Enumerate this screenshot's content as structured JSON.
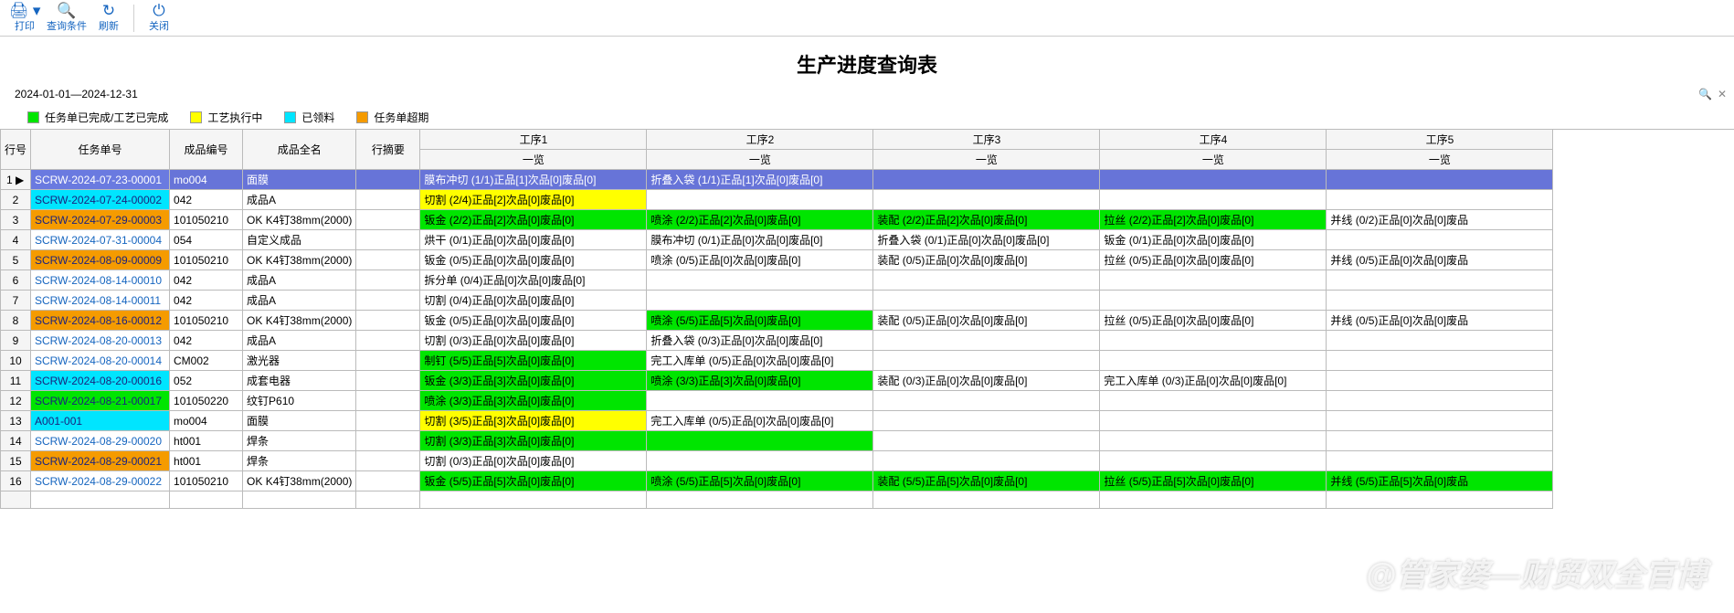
{
  "colors": {
    "green": "#00e500",
    "yellow": "#ffff00",
    "cyan": "#00e5ff",
    "orange": "#f59b00",
    "header_blue": "#6774d8",
    "selected_blue": "#6a7ae0",
    "link": "#1565c0",
    "white": "#ffffff",
    "header_bg": "#f5f5f5"
  },
  "toolbar": [
    {
      "name": "print",
      "icon": "🖨",
      "label": "打印",
      "dropdown": true
    },
    {
      "name": "query",
      "icon": "🔍",
      "label": "查询条件"
    },
    {
      "name": "refresh",
      "icon": "↻",
      "label": "刷新"
    },
    {
      "name": "sep"
    },
    {
      "name": "close",
      "icon": "⏻",
      "label": "关闭"
    }
  ],
  "title": "生产进度查询表",
  "date_range": "2024-01-01—2024-12-31",
  "right_icons": [
    "🔍",
    "✕"
  ],
  "legend": [
    {
      "color": "green",
      "label": "任务单已完成/工艺已完成"
    },
    {
      "color": "yellow",
      "label": "工艺执行中"
    },
    {
      "color": "cyan",
      "label": "已领料"
    },
    {
      "color": "orange",
      "label": "任务单超期"
    }
  ],
  "columns": {
    "row_no": "行号",
    "task_no": "任务单号",
    "product_code": "成品编号",
    "product_name": "成品全名",
    "summary": "行摘要",
    "process_prefix": "工序",
    "process_sub": "一览",
    "process_count": 5
  },
  "col_widths": {
    "row_no": 32,
    "task_no": 152,
    "product_code": 80,
    "product_name": 88,
    "summary": 70,
    "process": 248
  },
  "rows": [
    {
      "no": 1,
      "selected": true,
      "task": {
        "text": "SCRW-2024-07-23-00001",
        "bg": "selected_blue"
      },
      "code": {
        "text": "mo004",
        "bg": "header_blue"
      },
      "name": {
        "text": "面膜",
        "bg": "header_blue"
      },
      "summary": {
        "text": "",
        "bg": "header_blue"
      },
      "procs": [
        {
          "text": "膜布冲切 (1/1)正品[1]次品[0]废品[0]",
          "bg": "header_blue"
        },
        {
          "text": "折叠入袋 (1/1)正品[1]次品[0]废品[0]",
          "bg": "header_blue"
        },
        {
          "text": "",
          "bg": "header_blue"
        },
        {
          "text": "",
          "bg": "header_blue"
        },
        {
          "text": "",
          "bg": "header_blue"
        }
      ]
    },
    {
      "no": 2,
      "task": {
        "text": "SCRW-2024-07-24-00002",
        "bg": "cyan"
      },
      "code": {
        "text": "042"
      },
      "name": {
        "text": "成品A"
      },
      "summary": {
        "text": ""
      },
      "procs": [
        {
          "text": "切割 (2/4)正品[2]次品[0]废品[0]",
          "bg": "yellow"
        },
        {
          "text": ""
        },
        {
          "text": ""
        },
        {
          "text": ""
        },
        {
          "text": ""
        }
      ]
    },
    {
      "no": 3,
      "task": {
        "text": "SCRW-2024-07-29-00003",
        "bg": "orange"
      },
      "code": {
        "text": "101050210"
      },
      "name": {
        "text": "OK K4钉38mm(2000)"
      },
      "summary": {
        "text": ""
      },
      "procs": [
        {
          "text": "钣金 (2/2)正品[2]次品[0]废品[0]",
          "bg": "green"
        },
        {
          "text": "喷涂 (2/2)正品[2]次品[0]废品[0]",
          "bg": "green"
        },
        {
          "text": "装配 (2/2)正品[2]次品[0]废品[0]",
          "bg": "green"
        },
        {
          "text": "拉丝 (2/2)正品[2]次品[0]废品[0]",
          "bg": "green"
        },
        {
          "text": "并线 (0/2)正品[0]次品[0]废品"
        }
      ]
    },
    {
      "no": 4,
      "task": {
        "text": "SCRW-2024-07-31-00004"
      },
      "code": {
        "text": "054"
      },
      "name": {
        "text": "自定义成品"
      },
      "summary": {
        "text": ""
      },
      "procs": [
        {
          "text": "烘干 (0/1)正品[0]次品[0]废品[0]"
        },
        {
          "text": "膜布冲切 (0/1)正品[0]次品[0]废品[0]"
        },
        {
          "text": "折叠入袋 (0/1)正品[0]次品[0]废品[0]"
        },
        {
          "text": "钣金 (0/1)正品[0]次品[0]废品[0]"
        },
        {
          "text": ""
        }
      ]
    },
    {
      "no": 5,
      "task": {
        "text": "SCRW-2024-08-09-00009",
        "bg": "orange"
      },
      "code": {
        "text": "101050210"
      },
      "name": {
        "text": "OK K4钉38mm(2000)"
      },
      "summary": {
        "text": ""
      },
      "procs": [
        {
          "text": "钣金 (0/5)正品[0]次品[0]废品[0]"
        },
        {
          "text": "喷涂 (0/5)正品[0]次品[0]废品[0]"
        },
        {
          "text": "装配 (0/5)正品[0]次品[0]废品[0]"
        },
        {
          "text": "拉丝 (0/5)正品[0]次品[0]废品[0]"
        },
        {
          "text": "并线 (0/5)正品[0]次品[0]废品"
        }
      ]
    },
    {
      "no": 6,
      "task": {
        "text": "SCRW-2024-08-14-00010"
      },
      "code": {
        "text": "042"
      },
      "name": {
        "text": "成品A"
      },
      "summary": {
        "text": ""
      },
      "procs": [
        {
          "text": "拆分单 (0/4)正品[0]次品[0]废品[0]"
        },
        {
          "text": ""
        },
        {
          "text": ""
        },
        {
          "text": ""
        },
        {
          "text": ""
        }
      ]
    },
    {
      "no": 7,
      "task": {
        "text": "SCRW-2024-08-14-00011"
      },
      "code": {
        "text": "042"
      },
      "name": {
        "text": "成品A"
      },
      "summary": {
        "text": ""
      },
      "procs": [
        {
          "text": "切割 (0/4)正品[0]次品[0]废品[0]"
        },
        {
          "text": ""
        },
        {
          "text": ""
        },
        {
          "text": ""
        },
        {
          "text": ""
        }
      ]
    },
    {
      "no": 8,
      "task": {
        "text": "SCRW-2024-08-16-00012",
        "bg": "orange"
      },
      "code": {
        "text": "101050210"
      },
      "name": {
        "text": "OK K4钉38mm(2000)"
      },
      "summary": {
        "text": ""
      },
      "procs": [
        {
          "text": "钣金 (0/5)正品[0]次品[0]废品[0]"
        },
        {
          "text": "喷涂 (5/5)正品[5]次品[0]废品[0]",
          "bg": "green"
        },
        {
          "text": "装配 (0/5)正品[0]次品[0]废品[0]"
        },
        {
          "text": "拉丝 (0/5)正品[0]次品[0]废品[0]"
        },
        {
          "text": "并线 (0/5)正品[0]次品[0]废品"
        }
      ]
    },
    {
      "no": 9,
      "task": {
        "text": "SCRW-2024-08-20-00013"
      },
      "code": {
        "text": "042"
      },
      "name": {
        "text": "成品A"
      },
      "summary": {
        "text": ""
      },
      "procs": [
        {
          "text": "切割 (0/3)正品[0]次品[0]废品[0]"
        },
        {
          "text": "折叠入袋 (0/3)正品[0]次品[0]废品[0]"
        },
        {
          "text": ""
        },
        {
          "text": ""
        },
        {
          "text": ""
        }
      ]
    },
    {
      "no": 10,
      "task": {
        "text": "SCRW-2024-08-20-00014"
      },
      "code": {
        "text": "CM002"
      },
      "name": {
        "text": "激光器"
      },
      "summary": {
        "text": ""
      },
      "procs": [
        {
          "text": "制钉 (5/5)正品[5]次品[0]废品[0]",
          "bg": "green"
        },
        {
          "text": "完工入库单 (0/5)正品[0]次品[0]废品[0]"
        },
        {
          "text": ""
        },
        {
          "text": ""
        },
        {
          "text": ""
        }
      ]
    },
    {
      "no": 11,
      "task": {
        "text": "SCRW-2024-08-20-00016",
        "bg": "cyan"
      },
      "code": {
        "text": "052"
      },
      "name": {
        "text": "成套电器"
      },
      "summary": {
        "text": ""
      },
      "procs": [
        {
          "text": "钣金 (3/3)正品[3]次品[0]废品[0]",
          "bg": "green"
        },
        {
          "text": "喷涂 (3/3)正品[3]次品[0]废品[0]",
          "bg": "green"
        },
        {
          "text": "装配 (0/3)正品[0]次品[0]废品[0]"
        },
        {
          "text": "完工入库单 (0/3)正品[0]次品[0]废品[0]"
        },
        {
          "text": ""
        }
      ]
    },
    {
      "no": 12,
      "task": {
        "text": "SCRW-2024-08-21-00017",
        "bg": "green"
      },
      "code": {
        "text": "101050220"
      },
      "name": {
        "text": "纹钉P610"
      },
      "summary": {
        "text": ""
      },
      "procs": [
        {
          "text": "喷涂 (3/3)正品[3]次品[0]废品[0]",
          "bg": "green"
        },
        {
          "text": ""
        },
        {
          "text": ""
        },
        {
          "text": ""
        },
        {
          "text": ""
        }
      ]
    },
    {
      "no": 13,
      "task": {
        "text": "A001-001",
        "bg": "cyan"
      },
      "code": {
        "text": "mo004"
      },
      "name": {
        "text": "面膜"
      },
      "summary": {
        "text": ""
      },
      "procs": [
        {
          "text": "切割 (3/5)正品[3]次品[0]废品[0]",
          "bg": "yellow"
        },
        {
          "text": "完工入库单 (0/5)正品[0]次品[0]废品[0]"
        },
        {
          "text": ""
        },
        {
          "text": ""
        },
        {
          "text": ""
        }
      ]
    },
    {
      "no": 14,
      "task": {
        "text": "SCRW-2024-08-29-00020"
      },
      "code": {
        "text": "ht001"
      },
      "name": {
        "text": "焊条"
      },
      "summary": {
        "text": ""
      },
      "procs": [
        {
          "text": "切割 (3/3)正品[3]次品[0]废品[0]",
          "bg": "green"
        },
        {
          "text": "",
          "bg": "green"
        },
        {
          "text": ""
        },
        {
          "text": ""
        },
        {
          "text": ""
        }
      ]
    },
    {
      "no": 15,
      "task": {
        "text": "SCRW-2024-08-29-00021",
        "bg": "orange"
      },
      "code": {
        "text": "ht001"
      },
      "name": {
        "text": "焊条"
      },
      "summary": {
        "text": ""
      },
      "procs": [
        {
          "text": "切割 (0/3)正品[0]次品[0]废品[0]"
        },
        {
          "text": ""
        },
        {
          "text": ""
        },
        {
          "text": ""
        },
        {
          "text": ""
        }
      ]
    },
    {
      "no": 16,
      "task": {
        "text": "SCRW-2024-08-29-00022"
      },
      "code": {
        "text": "101050210"
      },
      "name": {
        "text": "OK K4钉38mm(2000)"
      },
      "summary": {
        "text": ""
      },
      "procs": [
        {
          "text": "钣金 (5/5)正品[5]次品[0]废品[0]",
          "bg": "green"
        },
        {
          "text": "喷涂 (5/5)正品[5]次品[0]废品[0]",
          "bg": "green"
        },
        {
          "text": "装配 (5/5)正品[5]次品[0]废品[0]",
          "bg": "green"
        },
        {
          "text": "拉丝 (5/5)正品[5]次品[0]废品[0]",
          "bg": "green"
        },
        {
          "text": "并线 (5/5)正品[5]次品[0]废品",
          "bg": "green"
        }
      ]
    }
  ],
  "watermark": "@管家婆—财贸双全官博"
}
